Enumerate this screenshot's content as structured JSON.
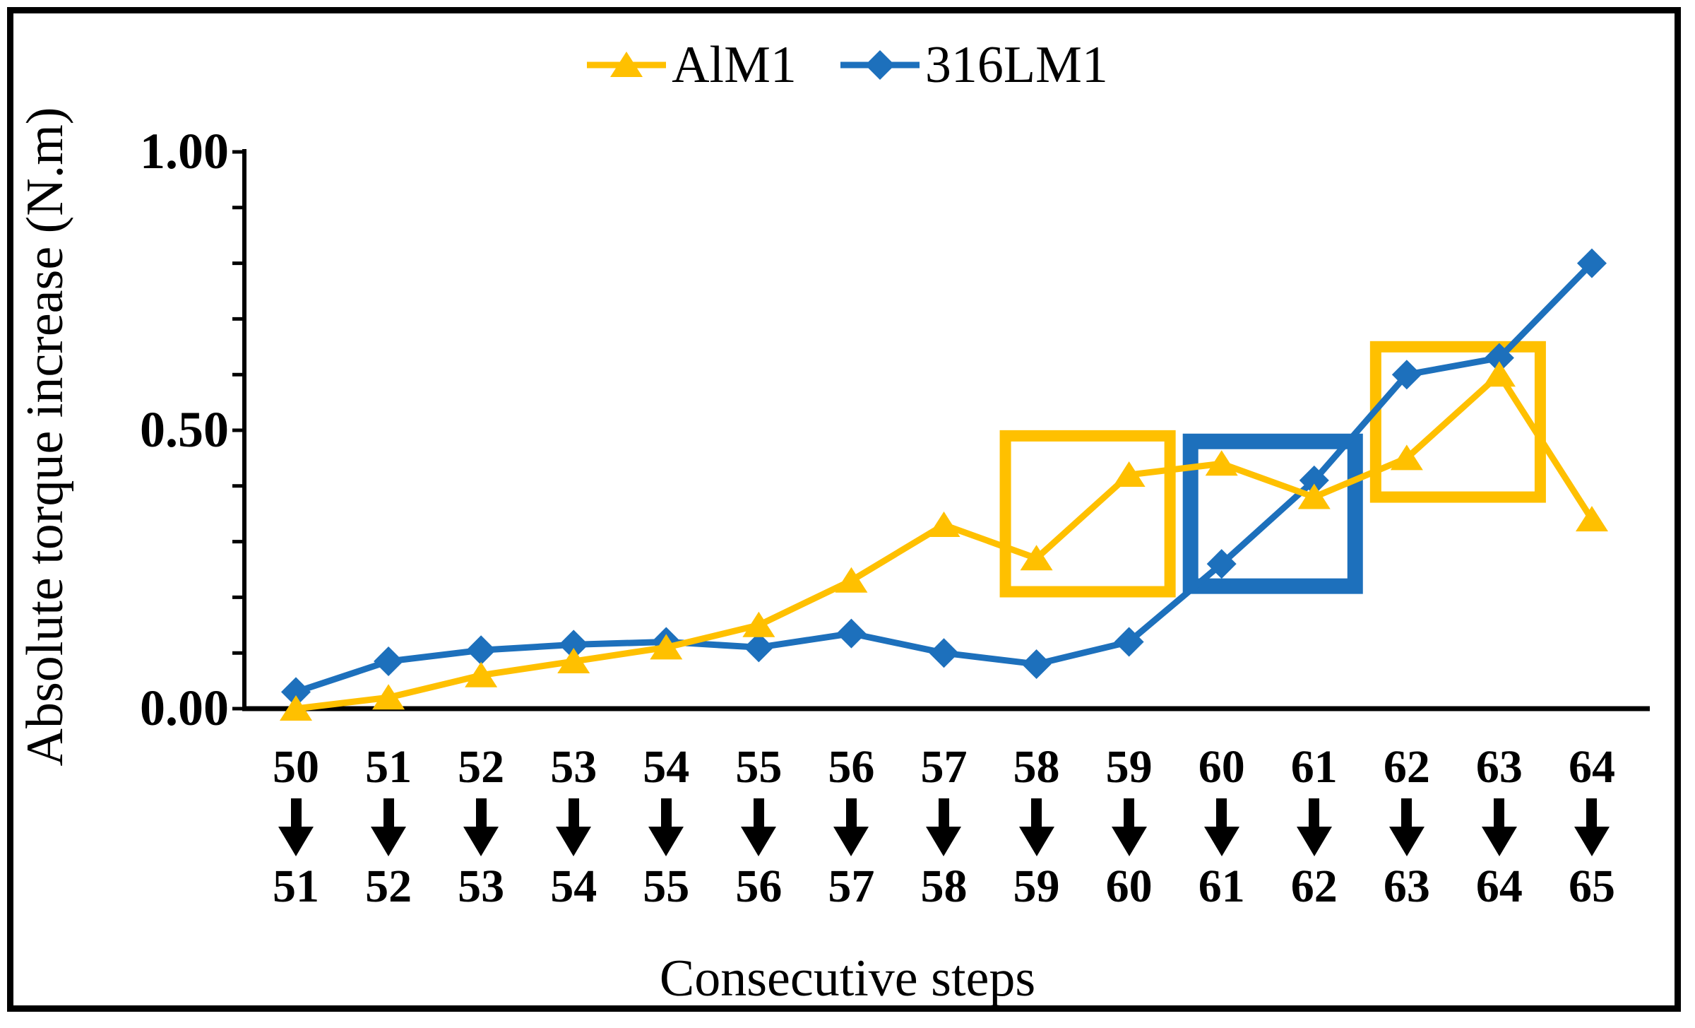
{
  "legend": {
    "items": [
      {
        "label": "AlM1",
        "color": "#FFC000",
        "marker": "triangle"
      },
      {
        "label": "316LM1",
        "color": "#1D70BC",
        "marker": "diamond"
      }
    ]
  },
  "y_axis": {
    "title": "Absolute torque increase (N.m)",
    "major_ticks": [
      {
        "label": "1.00",
        "value": 1.0
      },
      {
        "label": "0.50",
        "value": 0.5
      },
      {
        "label": "0.00",
        "value": 0.0
      }
    ],
    "minor_tick_step": 0.1,
    "range": [
      0,
      1
    ]
  },
  "x_axis": {
    "title": "Consecutive steps"
  },
  "chart_data": {
    "type": "line",
    "categories": [
      {
        "from": "50",
        "to": "51"
      },
      {
        "from": "51",
        "to": "52"
      },
      {
        "from": "52",
        "to": "53"
      },
      {
        "from": "53",
        "to": "54"
      },
      {
        "from": "54",
        "to": "55"
      },
      {
        "from": "55",
        "to": "56"
      },
      {
        "from": "56",
        "to": "57"
      },
      {
        "from": "57",
        "to": "58"
      },
      {
        "from": "58",
        "to": "59"
      },
      {
        "from": "59",
        "to": "60"
      },
      {
        "from": "60",
        "to": "61"
      },
      {
        "from": "61",
        "to": "62"
      },
      {
        "from": "62",
        "to": "63"
      },
      {
        "from": "63",
        "to": "64"
      },
      {
        "from": "64",
        "to": "65"
      }
    ],
    "series": [
      {
        "name": "316LM1",
        "color": "#1D70BC",
        "marker": "diamond",
        "values": [
          0.03,
          0.085,
          0.105,
          0.115,
          0.12,
          0.11,
          0.135,
          0.1,
          0.08,
          0.12,
          0.26,
          0.41,
          0.6,
          0.63,
          0.8
        ]
      },
      {
        "name": "AlM1",
        "color": "#FFC000",
        "marker": "triangle",
        "values": [
          0.0,
          0.02,
          0.06,
          0.085,
          0.11,
          0.15,
          0.23,
          0.33,
          0.27,
          0.42,
          0.44,
          0.38,
          0.45,
          0.6,
          0.34
        ]
      }
    ],
    "ylim": [
      0,
      1
    ],
    "grid": false,
    "legend_position": "top-center",
    "annotations": [
      {
        "type": "rect",
        "color": "#FFC000",
        "stroke_width": 16,
        "x_from": "58→59",
        "x_to": "59→60",
        "y_range": [
          0.21,
          0.49
        ]
      },
      {
        "type": "rect",
        "color": "#1D70BC",
        "stroke_width": 22,
        "x_from": "60→61",
        "x_to": "61→62",
        "y_range": [
          0.22,
          0.48
        ]
      },
      {
        "type": "rect",
        "color": "#FFC000",
        "stroke_width": 16,
        "x_from": "62→63",
        "x_to": "63→64",
        "y_range": [
          0.38,
          0.65
        ]
      }
    ]
  }
}
